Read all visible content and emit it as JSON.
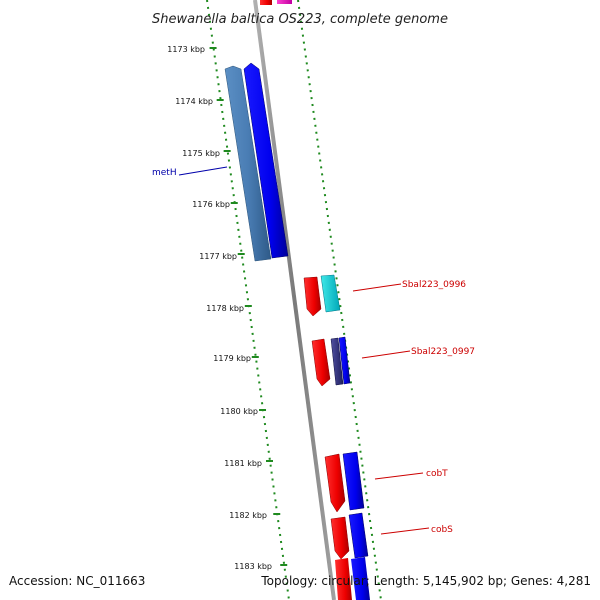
{
  "title": "Shewanella baltica OS223, complete genome",
  "accession": "Accession: NC_011663",
  "summary": "Topology: circular; Length: 5,145,902 bp; Genes: 4,281",
  "colors": {
    "backbone": "#8c8c8c",
    "tick": "#1f8a1f",
    "label_blue": "#0000aa",
    "label_red": "#cc0000"
  },
  "ticks": [
    {
      "label": "1173 kbp"
    },
    {
      "label": "1174 kbp"
    },
    {
      "label": "1175 kbp"
    },
    {
      "label": "1176 kbp"
    },
    {
      "label": "1177 kbp"
    },
    {
      "label": "1178 kbp"
    },
    {
      "label": "1179 kbp"
    },
    {
      "label": "1180 kbp"
    },
    {
      "label": "1181 kbp"
    },
    {
      "label": "1182 kbp"
    },
    {
      "label": "1183 kbp"
    }
  ],
  "genes": [
    {
      "name": "metH",
      "color": "#0000aa"
    },
    {
      "name": "Sbal223_0996",
      "color": "#cc0000"
    },
    {
      "name": "Sbal223_0997",
      "color": "#cc0000"
    },
    {
      "name": "cobT",
      "color": "#cc0000"
    },
    {
      "name": "cobS",
      "color": "#cc0000"
    }
  ]
}
